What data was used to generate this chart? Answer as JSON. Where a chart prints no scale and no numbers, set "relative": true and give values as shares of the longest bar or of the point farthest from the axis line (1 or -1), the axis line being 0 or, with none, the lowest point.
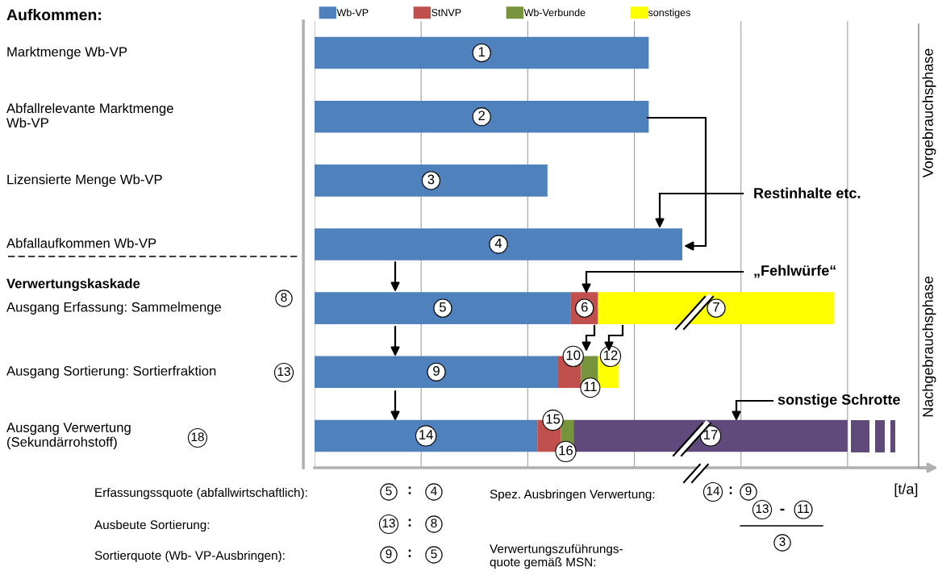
{
  "chart_data": {
    "type": "bar",
    "orientation": "horizontal",
    "stacked": true,
    "relative": true,
    "title": "Aufkommen:",
    "xlabel": "[t/a]",
    "legend": "top",
    "grid": "x",
    "categories": [
      "Marktmenge Wb-VP",
      "Abfallrelevante Marktmenge\nWb-VP",
      "Lizensierte Menge Wb-VP",
      "Abfallaufkommen Wb-VP",
      "Ausgang Erfassung: Sammelmenge",
      "Ausgang Sortierung: Sortierfraktion",
      "Ausgang Verwertung\n(Sekundärrohstoff)"
    ],
    "series": [
      {
        "name": "Wb-VP",
        "color": "#4f81bd",
        "values": [
          0.627,
          0.627,
          0.437,
          0.69,
          0.481,
          0.457,
          0.418
        ]
      },
      {
        "name": "StNVP",
        "color": "#c0504d",
        "values": [
          null,
          null,
          null,
          null,
          0.051,
          0.043,
          0.044
        ]
      },
      {
        "name": "Wb-Verbunde",
        "color": "#77933c",
        "values": [
          null,
          null,
          null,
          null,
          null,
          0.032,
          0.024
        ]
      },
      {
        "name": "sonstiges",
        "color": "#ffff00",
        "values": [
          null,
          null,
          null,
          null,
          0.443,
          0.038,
          null
        ]
      },
      {
        "color": "#604a7b",
        "values": [
          null,
          null,
          null,
          null,
          null,
          null,
          0.514
        ]
      }
    ],
    "annotations": [
      "Verwertungskaskade",
      "Vorgebrauchsphase",
      "Nachgebrauchsphase",
      "Restinhalte etc.",
      "„Fehlwürfe“",
      "sonstige Schrotte",
      "Erfassungssquote (abfallwirtschaftlich):",
      "5",
      ":",
      "4",
      "Ausbeute Sortierung:",
      "13",
      ":",
      "8",
      "Sortierquote (Wb- VP-Ausbringen):",
      "9",
      ":",
      "5",
      "Spez. Ausbringen Verwertung:",
      "14",
      ":",
      "9",
      "Verwertungszuführungs-\nquote gemäß MSN:",
      "13",
      "-",
      "11",
      "3",
      "8",
      "13",
      "18",
      {
        "text": "1",
        "x": 0.3135,
        "y": "Marktmenge Wb-VP"
      },
      {
        "text": "2",
        "x": 0.3135,
        "y": "Abfallrelevante Marktmenge\nWb-VP"
      },
      {
        "text": "3",
        "x": 0.2185,
        "y": "Lizensierte Menge Wb-VP"
      },
      {
        "text": "4",
        "x": 0.345,
        "y": "Abfallaufkommen Wb-VP"
      },
      {
        "text": "5",
        "x": 0.2405,
        "y": "Ausgang Erfassung: Sammelmenge"
      },
      {
        "text": "6",
        "x": 0.5065,
        "y": "Ausgang Erfassung: Sammelmenge"
      },
      {
        "text": "7",
        "x": 0.7535,
        "y": "Ausgang Erfassung: Sammelmenge"
      },
      {
        "text": "9",
        "x": 0.2285,
        "y": "Ausgang Sortierung: Sortierfraktion"
      },
      {
        "text": "10",
        "x": 0.5,
        "y": "Ausgang Sortierung: Sortierfraktion"
      },
      {
        "text": "11",
        "x": 0.532,
        "y": "Ausgang Sortierung: Sortierfraktion"
      },
      {
        "text": "12",
        "x": 0.57,
        "y": "Ausgang Sortierung: Sortierfraktion"
      },
      {
        "text": "14",
        "x": 0.209,
        "y": "Ausgang Verwertung\n(Sekundärrohstoff)"
      },
      {
        "text": "15",
        "x": 0.462,
        "y": "Ausgang Verwertung\n(Sekundärrohstoff)"
      },
      {
        "text": "16",
        "x": 0.486,
        "y": "Ausgang Verwertung\n(Sekundärrohstoff)"
      },
      {
        "text": "17",
        "x": 0.743,
        "y": "Ausgang Verwertung\n(Sekundärrohstoff)"
      }
    ]
  }
}
